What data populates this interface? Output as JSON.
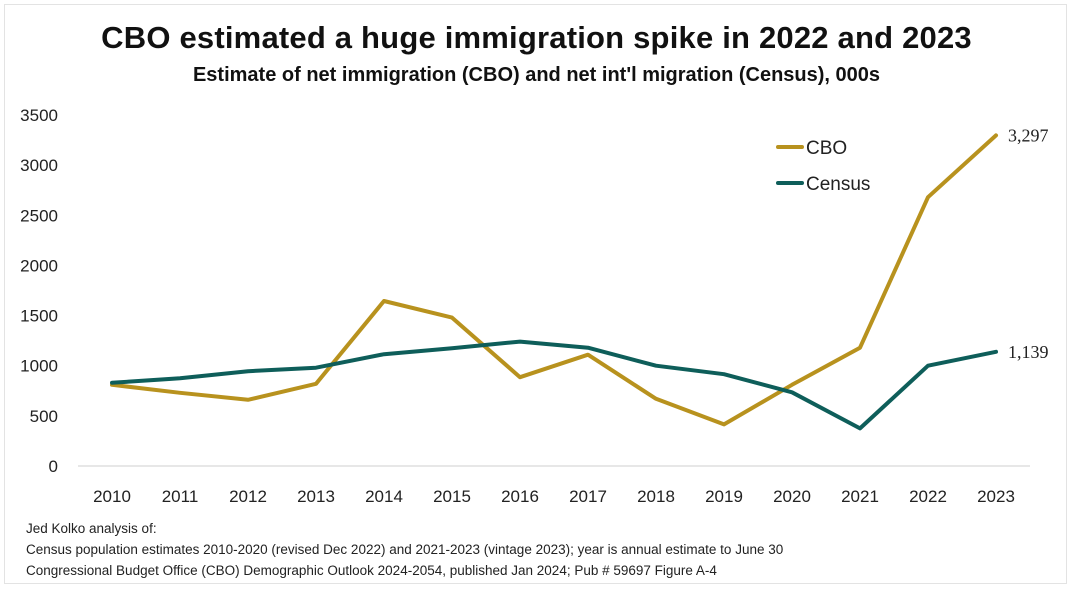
{
  "title": "CBO estimated a huge immigration spike in 2022 and 2023",
  "subtitle": "Estimate of net immigration (CBO) and net int'l migration (Census), 000s",
  "notes": [
    "Jed Kolko analysis of:",
    "Census population estimates 2010-2020 (revised Dec 2022) and 2021-2023 (vintage 2023); year is annual estimate to June 30",
    "Congressional Budget Office (CBO) Demographic Outlook 2024-2054, published Jan 2024; Pub # 59697 Figure A-4"
  ],
  "chart_data": {
    "type": "line",
    "title": "CBO estimated a huge immigration spike in 2022 and 2023",
    "subtitle": "Estimate of net immigration (CBO) and net int'l migration (Census), 000s",
    "x": [
      "2010",
      "2011",
      "2012",
      "2013",
      "2014",
      "2015",
      "2016",
      "2017",
      "2018",
      "2019",
      "2020",
      "2021",
      "2022",
      "2023"
    ],
    "series": [
      {
        "name": "CBO",
        "color": "#b8921e",
        "values": [
          810,
          730,
          660,
          820,
          1645,
          1480,
          885,
          1110,
          670,
          415,
          810,
          1180,
          2680,
          3297
        ],
        "end_label": "3,297"
      },
      {
        "name": "Census",
        "color": "#0e5e5a",
        "values": [
          830,
          875,
          945,
          980,
          1115,
          1175,
          1240,
          1180,
          1000,
          915,
          735,
          375,
          1000,
          1139
        ],
        "end_label": "1,139"
      }
    ],
    "yticks": [
      "0",
      "500",
      "1000",
      "1500",
      "2000",
      "2500",
      "3000",
      "3500"
    ],
    "ylim": [
      0,
      3500
    ],
    "grid": false,
    "legend": "top-right"
  }
}
